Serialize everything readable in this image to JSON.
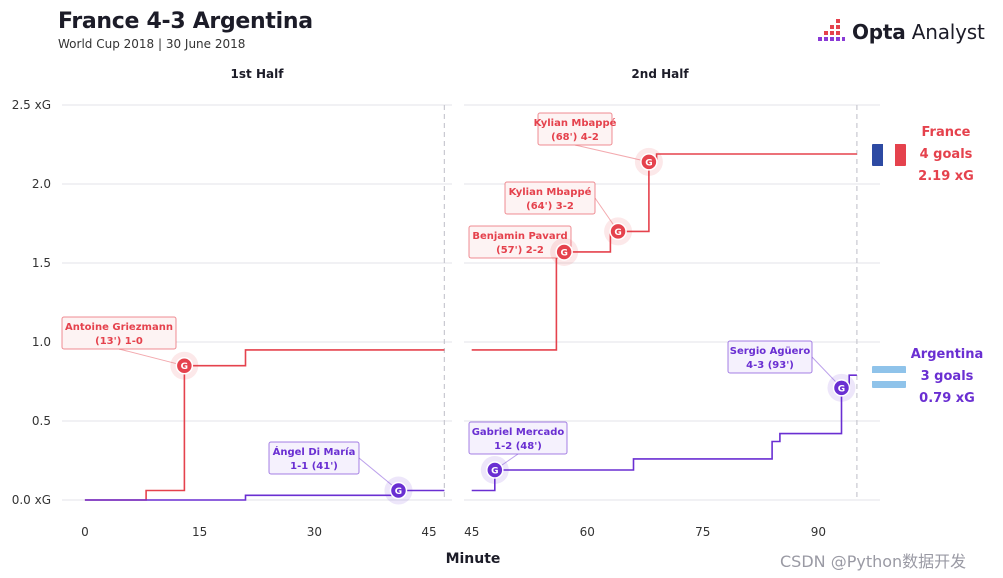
{
  "header": {
    "title": "France 4-3 Argentina",
    "subtitle": "World Cup 2018 | 30 June 2018",
    "brand_bold": "Opta",
    "brand_rest": " Analyst"
  },
  "watermark": "CSDN @Python数据开发",
  "colors": {
    "france": "#e5424d",
    "argentina": "#6a2fd2",
    "france_label_bg": "#fdf3f3",
    "argentina_label_bg": "#f5f1fd",
    "grid": "#e3e3e8",
    "dashed": "#c8c8d0"
  },
  "teams": {
    "france": {
      "name": "France",
      "goals": "4 goals",
      "xg": "2.19 xG"
    },
    "argentina": {
      "name": "Argentina",
      "goals": "3 goals",
      "xg": "0.79 xG"
    }
  },
  "chart_data": {
    "type": "line",
    "xlabel": "Minute",
    "ylabel": "",
    "panels": [
      {
        "title": "1st Half",
        "xlim": [
          -3,
          48
        ],
        "ticks": [
          0,
          15,
          30,
          45
        ],
        "end_marker": 47
      },
      {
        "title": "2nd Half",
        "xlim": [
          44,
          98
        ],
        "ticks": [
          45,
          60,
          75,
          90
        ],
        "end_marker": 95
      }
    ],
    "ylim": [
      0,
      2.5
    ],
    "yticks": [
      0,
      0.5,
      1.0,
      1.5,
      2.0,
      2.5
    ],
    "ytick_labels": [
      "0.0 xG",
      "0.5",
      "1.0",
      "1.5",
      "2.0",
      "2.5 xG"
    ],
    "series": [
      {
        "name": "France",
        "half1": [
          [
            0,
            0
          ],
          [
            8,
            0
          ],
          [
            8,
            0.06
          ],
          [
            13,
            0.06
          ],
          [
            13,
            0.85
          ],
          [
            21,
            0.85
          ],
          [
            21,
            0.95
          ],
          [
            47,
            0.95
          ]
        ],
        "half2": [
          [
            45,
            0.95
          ],
          [
            56,
            0.95
          ],
          [
            56,
            1.57
          ],
          [
            63,
            1.57
          ],
          [
            63,
            1.7
          ],
          [
            68,
            1.7
          ],
          [
            68,
            2.14
          ],
          [
            69,
            2.14
          ],
          [
            69,
            2.19
          ],
          [
            95,
            2.19
          ]
        ]
      },
      {
        "name": "Argentina",
        "half1": [
          [
            0,
            0
          ],
          [
            21,
            0
          ],
          [
            21,
            0.03
          ],
          [
            41,
            0.03
          ],
          [
            41,
            0.06
          ],
          [
            47,
            0.06
          ]
        ],
        "half2": [
          [
            45,
            0.06
          ],
          [
            48,
            0.06
          ],
          [
            48,
            0.19
          ],
          [
            66,
            0.19
          ],
          [
            66,
            0.26
          ],
          [
            84,
            0.26
          ],
          [
            84,
            0.37
          ],
          [
            85,
            0.37
          ],
          [
            85,
            0.42
          ],
          [
            93,
            0.42
          ],
          [
            93,
            0.71
          ],
          [
            94,
            0.71
          ],
          [
            94,
            0.79
          ],
          [
            95,
            0.79
          ]
        ]
      }
    ],
    "goals": [
      {
        "team": "france",
        "half": 1,
        "minute": 13,
        "xg": 0.85,
        "label1": "Antoine Griezmann",
        "label2": "(13') 1-0"
      },
      {
        "team": "argentina",
        "half": 1,
        "minute": 41,
        "xg": 0.06,
        "label1": "Ángel Di María",
        "label2": "1-1 (41')"
      },
      {
        "team": "argentina",
        "half": 2,
        "minute": 48,
        "xg": 0.19,
        "label1": "Gabriel Mercado",
        "label2": "1-2 (48')"
      },
      {
        "team": "france",
        "half": 2,
        "minute": 57,
        "xg": 1.57,
        "label1": "Benjamin Pavard",
        "label2": "(57') 2-2"
      },
      {
        "team": "france",
        "half": 2,
        "minute": 64,
        "xg": 1.7,
        "label1": "Kylian Mbappé",
        "label2": "(64') 3-2"
      },
      {
        "team": "france",
        "half": 2,
        "minute": 68,
        "xg": 2.14,
        "label1": "Kylian Mbappé",
        "label2": "(68') 4-2"
      },
      {
        "team": "argentina",
        "half": 2,
        "minute": 93,
        "xg": 0.71,
        "label1": "Sergio Agüero",
        "label2": "4-3 (93')"
      }
    ],
    "goal_marker": "G"
  }
}
